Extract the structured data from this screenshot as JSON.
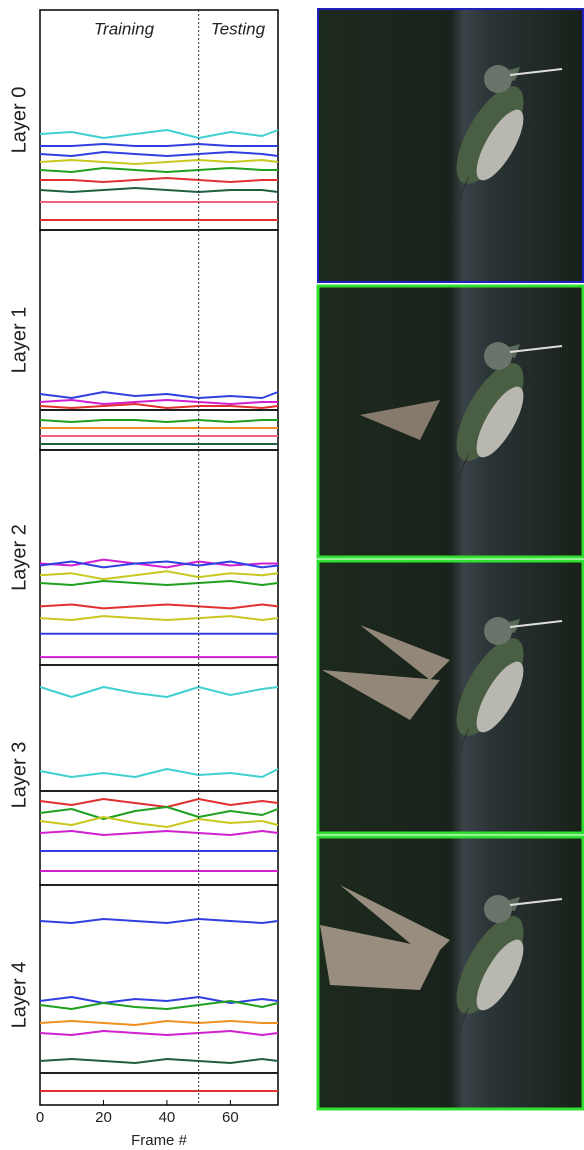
{
  "chart_data": [
    {
      "type": "line",
      "ylabel": "Layer 0",
      "annotations": [
        "Training",
        "Testing"
      ],
      "divider_x": 50,
      "x": [
        0,
        10,
        20,
        30,
        40,
        50,
        60,
        70,
        75
      ],
      "xlim": [
        0,
        75
      ],
      "ylim": [
        0,
        100
      ],
      "series": [
        {
          "color": "#40d0d0",
          "values": [
            46,
            47,
            44,
            46,
            48,
            44,
            47,
            45,
            48
          ]
        },
        {
          "color": "#3040e0",
          "values": [
            40,
            40,
            41,
            40,
            40,
            41,
            40,
            40,
            40
          ]
        },
        {
          "color": "#3040e0",
          "values": [
            36,
            35,
            37,
            36,
            35,
            36,
            37,
            36,
            35
          ]
        },
        {
          "color": "#c8c820",
          "values": [
            32,
            33,
            32,
            31,
            32,
            33,
            32,
            33,
            32
          ]
        },
        {
          "color": "#20a020",
          "values": [
            28,
            27,
            29,
            28,
            27,
            28,
            29,
            28,
            28
          ]
        },
        {
          "color": "#e03030",
          "values": [
            23,
            23,
            22,
            23,
            24,
            23,
            22,
            23,
            23
          ]
        },
        {
          "color": "#206040",
          "values": [
            18,
            17,
            18,
            19,
            18,
            17,
            18,
            18,
            17
          ]
        },
        {
          "color": "#f06080",
          "values": [
            12,
            12,
            12,
            12,
            12,
            12,
            12,
            12,
            12
          ]
        },
        {
          "color": "#e03030",
          "values": [
            3,
            3,
            3,
            3,
            3,
            3,
            3,
            3,
            3
          ]
        }
      ]
    },
    {
      "type": "line",
      "ylabel": "Layer 1",
      "divider_x": 50,
      "x": [
        0,
        10,
        20,
        30,
        40,
        50,
        60,
        70,
        75
      ],
      "xlim": [
        0,
        75
      ],
      "ylim": [
        0,
        100
      ],
      "series": [
        {
          "color": "#3040e0",
          "values": [
            26,
            24,
            27,
            25,
            26,
            24,
            25,
            24,
            27
          ]
        },
        {
          "color": "#d020d0",
          "values": [
            22,
            23,
            21,
            22,
            23,
            22,
            21,
            22,
            22
          ]
        },
        {
          "color": "#e03030",
          "values": [
            20,
            19,
            20,
            21,
            19,
            20,
            20,
            19,
            20
          ]
        },
        {
          "color": "#202020",
          "values": [
            18,
            18,
            18,
            18,
            18,
            18,
            18,
            18,
            18
          ]
        },
        {
          "color": "#20a020",
          "values": [
            13,
            12,
            13,
            13,
            12,
            13,
            12,
            13,
            13
          ]
        },
        {
          "color": "#f09020",
          "values": [
            9,
            9,
            9,
            9,
            9,
            9,
            9,
            9,
            9
          ]
        },
        {
          "color": "#f06080",
          "values": [
            5,
            5,
            5,
            5,
            5,
            5,
            5,
            5,
            5
          ]
        },
        {
          "color": "#206040",
          "values": [
            1,
            1,
            1,
            1,
            1,
            1,
            1,
            1,
            1
          ]
        }
      ]
    },
    {
      "type": "line",
      "ylabel": "Layer 2",
      "divider_x": 50,
      "x": [
        0,
        10,
        20,
        30,
        40,
        50,
        60,
        70,
        75
      ],
      "xlim": [
        0,
        75
      ],
      "ylim": [
        0,
        100
      ],
      "series": [
        {
          "color": "#d020d0",
          "values": [
            50,
            49,
            52,
            50,
            48,
            51,
            49,
            50,
            50
          ]
        },
        {
          "color": "#3040e0",
          "values": [
            49,
            51,
            48,
            50,
            51,
            49,
            51,
            48,
            49
          ]
        },
        {
          "color": "#c8c820",
          "values": [
            44,
            45,
            42,
            44,
            46,
            43,
            45,
            44,
            45
          ]
        },
        {
          "color": "#20a020",
          "values": [
            40,
            39,
            41,
            40,
            39,
            40,
            41,
            39,
            40
          ]
        },
        {
          "color": "#e03030",
          "values": [
            28,
            29,
            27,
            28,
            29,
            28,
            27,
            29,
            28
          ]
        },
        {
          "color": "#c8c820",
          "values": [
            22,
            21,
            23,
            22,
            21,
            22,
            23,
            21,
            22
          ]
        },
        {
          "color": "#3040e0",
          "values": [
            14,
            14,
            14,
            14,
            14,
            14,
            14,
            14,
            14
          ]
        },
        {
          "color": "#d020d0",
          "values": [
            2,
            2,
            2,
            2,
            2,
            2,
            2,
            2,
            2
          ]
        }
      ]
    },
    {
      "type": "line",
      "ylabel": "Layer 3",
      "divider_x": 50,
      "x": [
        0,
        10,
        20,
        30,
        40,
        50,
        60,
        70,
        75
      ],
      "xlim": [
        0,
        75
      ],
      "ylim": [
        0,
        100
      ],
      "series": [
        {
          "color": "#40d0d0",
          "values": [
            97,
            92,
            97,
            94,
            92,
            97,
            93,
            96,
            97
          ]
        },
        {
          "color": "#40d0d0",
          "values": [
            55,
            52,
            54,
            52,
            56,
            53,
            54,
            52,
            56
          ]
        },
        {
          "color": "#202020",
          "values": [
            45,
            45,
            45,
            45,
            45,
            45,
            45,
            45,
            45
          ]
        },
        {
          "color": "#e03030",
          "values": [
            40,
            38,
            41,
            39,
            37,
            41,
            38,
            40,
            39
          ]
        },
        {
          "color": "#20a020",
          "values": [
            34,
            36,
            31,
            35,
            37,
            32,
            35,
            33,
            36
          ]
        },
        {
          "color": "#c8c820",
          "values": [
            30,
            28,
            32,
            29,
            27,
            31,
            29,
            30,
            28
          ]
        },
        {
          "color": "#d020d0",
          "values": [
            24,
            25,
            23,
            24,
            25,
            24,
            23,
            25,
            24
          ]
        },
        {
          "color": "#3040e0",
          "values": [
            15,
            15,
            15,
            15,
            15,
            15,
            15,
            15,
            15
          ]
        },
        {
          "color": "#d020d0",
          "values": [
            5,
            5,
            5,
            5,
            5,
            5,
            5,
            5,
            5
          ]
        }
      ]
    },
    {
      "type": "line",
      "ylabel": "Layer 4",
      "xlabel": "Frame #",
      "divider_x": 50,
      "x": [
        0,
        10,
        20,
        30,
        40,
        50,
        60,
        70,
        75
      ],
      "xlim": [
        0,
        75
      ],
      "ylim": [
        0,
        100
      ],
      "xticks": [
        0,
        20,
        40,
        60
      ],
      "series": [
        {
          "color": "#3040e0",
          "values": [
            90,
            89,
            91,
            90,
            89,
            91,
            90,
            89,
            90
          ]
        },
        {
          "color": "#3040e0",
          "values": [
            50,
            52,
            49,
            51,
            50,
            52,
            49,
            51,
            50
          ]
        },
        {
          "color": "#20a020",
          "values": [
            48,
            46,
            49,
            47,
            46,
            48,
            50,
            47,
            49
          ]
        },
        {
          "color": "#f09020",
          "values": [
            39,
            40,
            39,
            38,
            40,
            39,
            40,
            39,
            39
          ]
        },
        {
          "color": "#d020d0",
          "values": [
            34,
            33,
            35,
            34,
            33,
            34,
            35,
            33,
            34
          ]
        },
        {
          "color": "#206040",
          "values": [
            20,
            21,
            20,
            19,
            21,
            20,
            19,
            21,
            20
          ]
        },
        {
          "color": "#202020",
          "values": [
            14,
            14,
            14,
            14,
            14,
            14,
            14,
            14,
            14
          ]
        },
        {
          "color": "#e03030",
          "values": [
            5,
            5,
            5,
            5,
            5,
            5,
            5,
            5,
            5
          ]
        }
      ]
    }
  ]
}
